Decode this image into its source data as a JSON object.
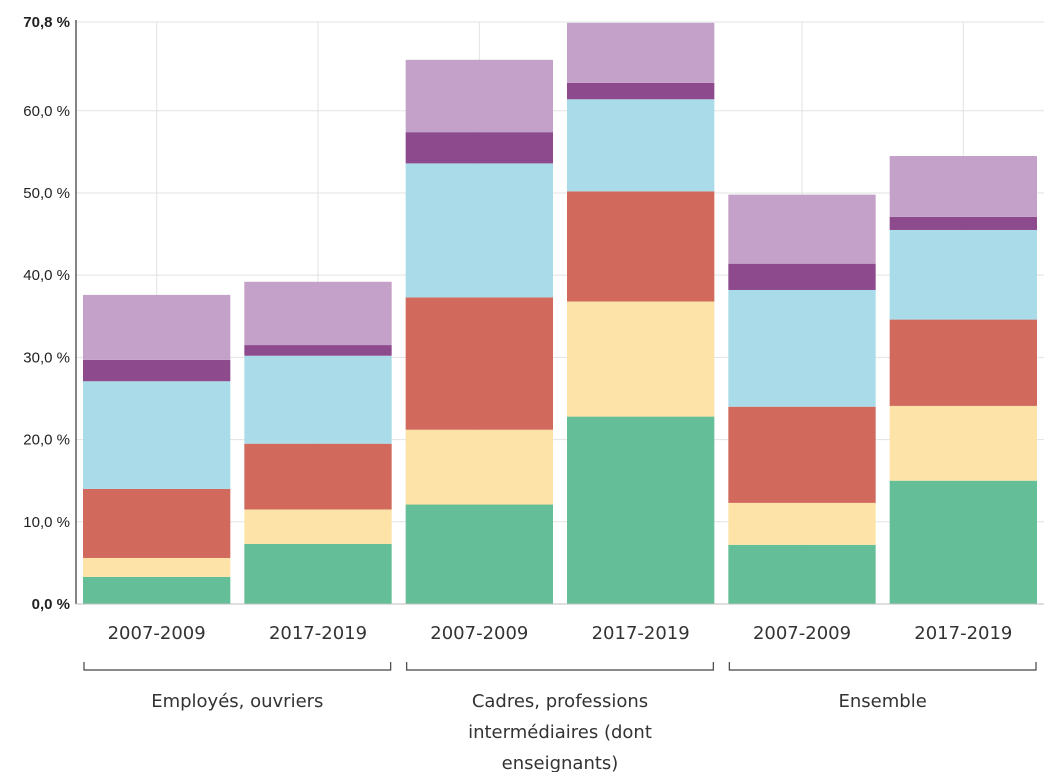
{
  "chart_data": {
    "type": "bar",
    "stacked": true,
    "ylim": [
      0,
      70.8
    ],
    "y_ticks": [
      {
        "value": 0,
        "label": "0,0 %",
        "bold": true
      },
      {
        "value": 10,
        "label": "10,0 %",
        "bold": false
      },
      {
        "value": 20,
        "label": "20,0 %",
        "bold": false
      },
      {
        "value": 30,
        "label": "30,0 %",
        "bold": false
      },
      {
        "value": 40,
        "label": "40,0 %",
        "bold": false
      },
      {
        "value": 50,
        "label": "50,0 %",
        "bold": false
      },
      {
        "value": 60,
        "label": "60,0 %",
        "bold": false
      },
      {
        "value": 70.8,
        "label": "70,8 %",
        "bold": true
      }
    ],
    "grid": true,
    "categories": [
      "2007-2009",
      "2017-2019",
      "2007-2009",
      "2017-2019",
      "2007-2009",
      "2017-2019"
    ],
    "groups": [
      {
        "label": [
          "Employés, ouvriers"
        ],
        "categories": [
          0,
          1
        ]
      },
      {
        "label": [
          "Cadres, professions",
          "intermédiaires (dont",
          "enseignants)"
        ],
        "categories": [
          2,
          3
        ]
      },
      {
        "label": [
          "Ensemble"
        ],
        "categories": [
          4,
          5
        ]
      }
    ],
    "series": [
      {
        "color": "#64bf98",
        "values": [
          3.3,
          7.3,
          12.1,
          22.8,
          7.2,
          15.0
        ]
      },
      {
        "color": "#fde3a7",
        "values": [
          2.3,
          4.2,
          9.1,
          14.0,
          5.1,
          9.1
        ]
      },
      {
        "color": "#d1695c",
        "values": [
          8.4,
          8.0,
          16.1,
          13.4,
          11.7,
          10.5
        ]
      },
      {
        "color": "#a9dbe8",
        "values": [
          13.1,
          10.7,
          16.3,
          11.2,
          14.2,
          10.9
        ]
      },
      {
        "color": "#8d4b8d",
        "values": [
          2.6,
          1.3,
          3.8,
          2.0,
          3.2,
          1.6
        ]
      },
      {
        "color": "#c4a1c9",
        "values": [
          7.9,
          7.7,
          8.8,
          7.3,
          8.4,
          7.4
        ]
      }
    ]
  }
}
